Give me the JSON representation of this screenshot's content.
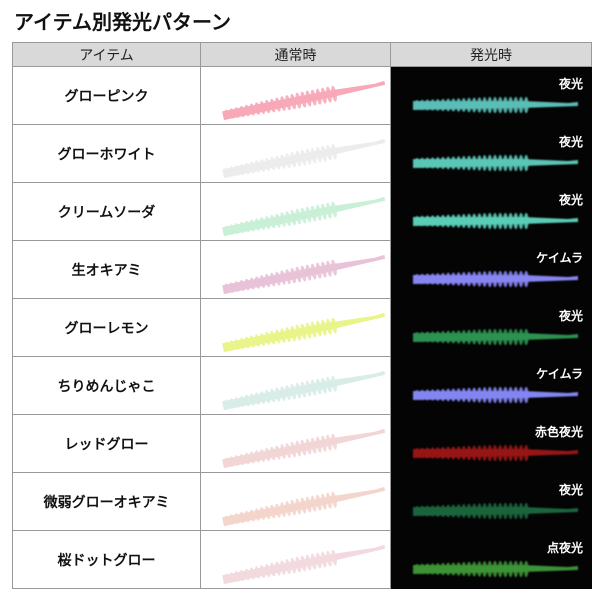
{
  "title": "アイテム別発光パターン",
  "headers": [
    "アイテム",
    "通常時",
    "発光時"
  ],
  "rows": [
    {
      "name": "グローピンク",
      "glow_label": "夜光",
      "normal_color": "#f7a9b8",
      "glow_color": "#5fc8c0"
    },
    {
      "name": "グローホワイト",
      "glow_label": "夜光",
      "normal_color": "#ececec",
      "glow_color": "#5fd0c0"
    },
    {
      "name": "クリームソーダ",
      "glow_label": "夜光",
      "normal_color": "#c9efd6",
      "glow_color": "#5fd8c0"
    },
    {
      "name": "生オキアミ",
      "glow_label": "ケイムラ",
      "normal_color": "#e8c3d8",
      "glow_color": "#8f8cff"
    },
    {
      "name": "グローレモン",
      "glow_label": "夜光",
      "normal_color": "#e9f48a",
      "glow_color": "#2f9a55"
    },
    {
      "name": "ちりめんじゃこ",
      "glow_label": "ケイムラ",
      "normal_color": "#d8ece8",
      "glow_color": "#8a8dff"
    },
    {
      "name": "レッドグロー",
      "glow_label": "赤色夜光",
      "normal_color": "#f2d6d6",
      "glow_color": "#a01818"
    },
    {
      "name": "微弱グローオキアミ",
      "glow_label": "夜光",
      "normal_color": "#f4d5cc",
      "glow_color": "#1f6a40"
    },
    {
      "name": "桜ドットグロー",
      "glow_label": "点夜光",
      "normal_color": "#f2d9df",
      "glow_color": "#3f9a3a"
    }
  ]
}
